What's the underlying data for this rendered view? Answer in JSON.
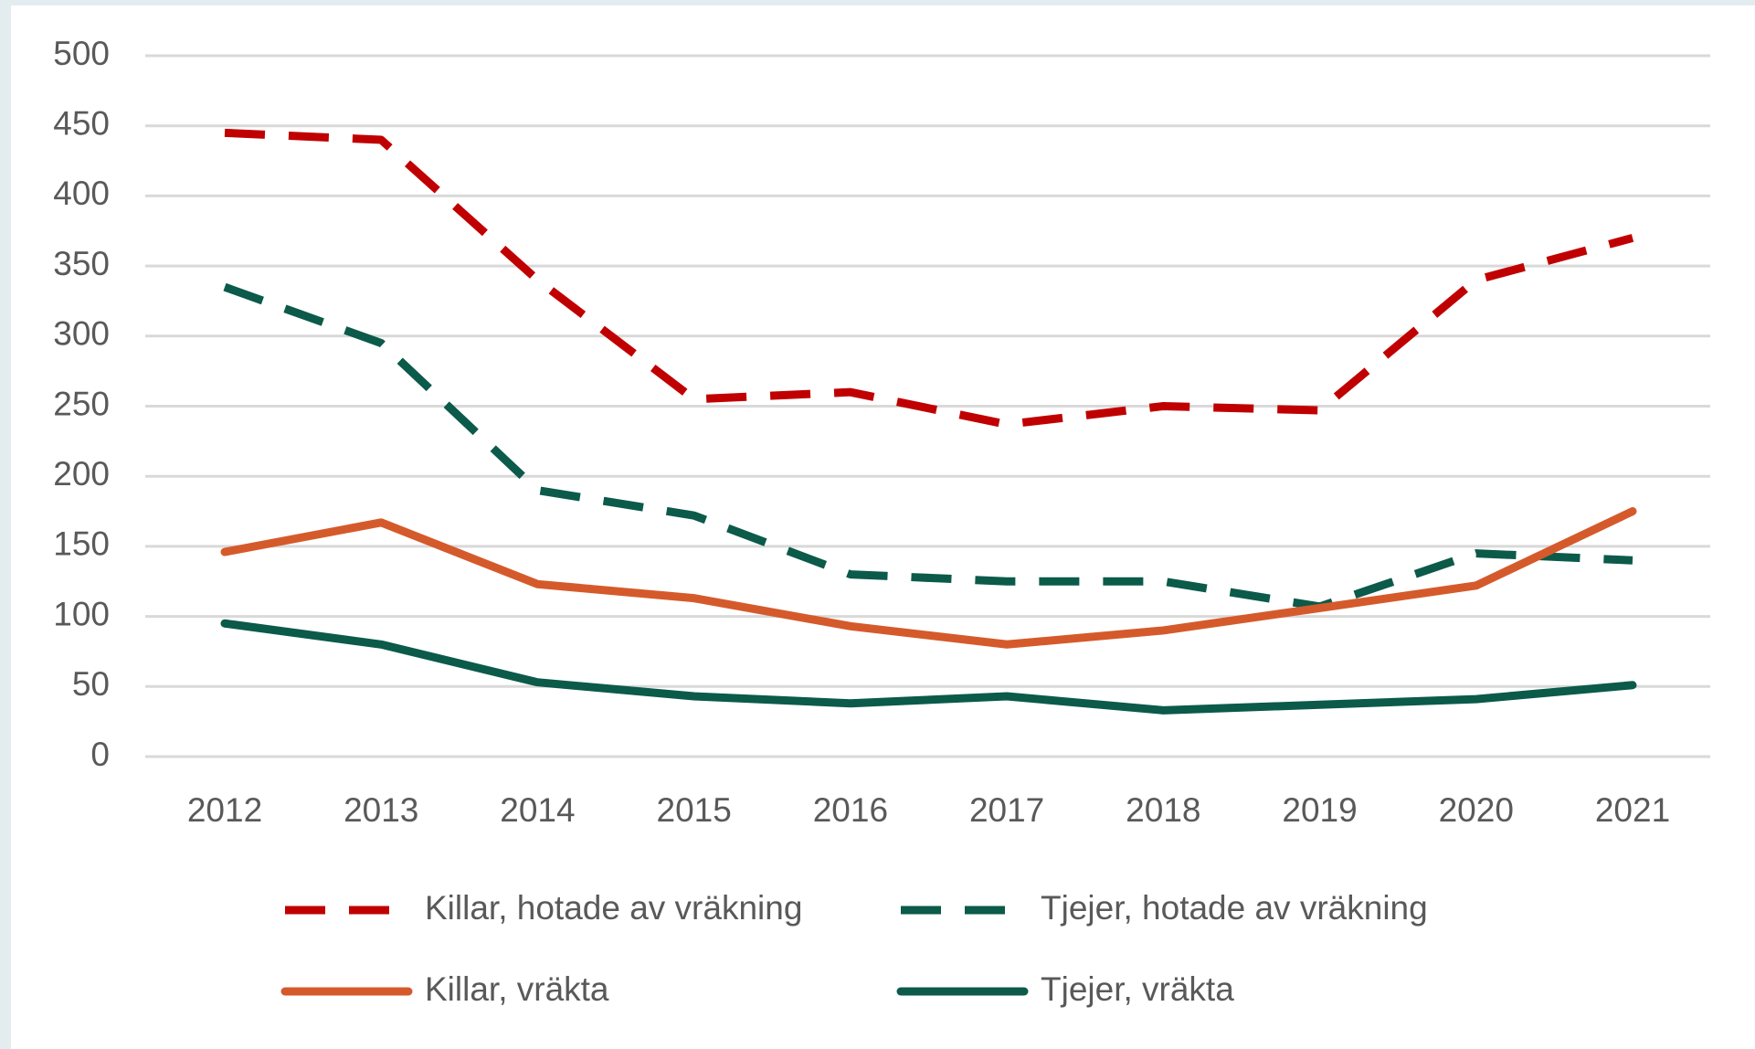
{
  "chart_data": {
    "type": "line",
    "categories": [
      "2012",
      "2013",
      "2014",
      "2015",
      "2016",
      "2017",
      "2018",
      "2019",
      "2020",
      "2021"
    ],
    "series": [
      {
        "name": "Killar, hotade av vräkning",
        "color": "#c00000",
        "dashed": true,
        "values": [
          445,
          440,
          340,
          255,
          260,
          237,
          250,
          247,
          340,
          370
        ]
      },
      {
        "name": "Tjejer, hotade av vräkning",
        "color": "#0b5a4a",
        "dashed": true,
        "values": [
          335,
          295,
          190,
          172,
          130,
          125,
          125,
          107,
          145,
          140
        ]
      },
      {
        "name": "Killar, vräkta",
        "color": "#d55a2b",
        "dashed": false,
        "values": [
          146,
          167,
          123,
          113,
          93,
          80,
          90,
          106,
          122,
          175
        ]
      },
      {
        "name": "Tjejer, vräkta",
        "color": "#0b5a4a",
        "dashed": false,
        "values": [
          95,
          80,
          53,
          43,
          38,
          43,
          33,
          37,
          41,
          51
        ]
      }
    ],
    "ylim": [
      0,
      500
    ],
    "yticks": [
      0,
      50,
      100,
      150,
      200,
      250,
      300,
      350,
      400,
      450,
      500
    ],
    "grid": true,
    "legend": "bottom"
  }
}
